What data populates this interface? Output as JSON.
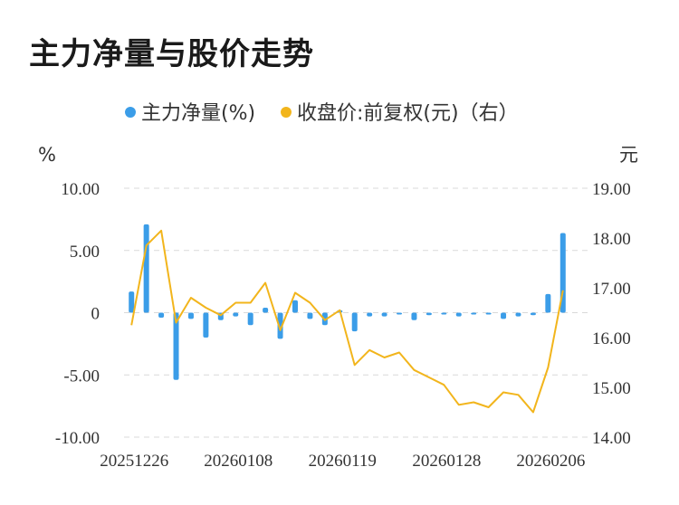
{
  "title": "主力净量与股价走势",
  "chart_data": {
    "type": "bar+line",
    "left_unit": "%",
    "right_unit": "元",
    "left_axis": {
      "min": -10,
      "max": 10,
      "ticks": [
        10,
        5,
        0,
        -5,
        -10
      ],
      "tick_labels": [
        "10.00",
        "5.00",
        "0",
        "-5.00",
        "-10.00"
      ]
    },
    "right_axis": {
      "min": 14,
      "max": 19,
      "ticks": [
        19,
        18,
        17,
        16,
        15,
        14
      ],
      "tick_labels": [
        "19.00",
        "18.00",
        "17.00",
        "16.00",
        "15.00",
        "14.00"
      ]
    },
    "x_tick_labels": [
      "20251226",
      "20260108",
      "20260119",
      "20260128",
      "20260206"
    ],
    "x_tick_indices": [
      0,
      7,
      14,
      21,
      28
    ],
    "legend": {
      "bar_label": "主力净量(%)",
      "line_label": "收盘价:前复权(元)（右）"
    },
    "colors": {
      "bar": "#3b9de8",
      "line": "#f2b51c",
      "grid": "#d9d9d9"
    },
    "bars": [
      1.7,
      7.1,
      -0.4,
      -5.4,
      -0.5,
      -2.0,
      -0.6,
      -0.3,
      -1.0,
      0.4,
      -2.1,
      1.0,
      -0.5,
      -1.0,
      0.2,
      -1.5,
      -0.3,
      -0.3,
      -0.1,
      -0.6,
      -0.2,
      -0.1,
      -0.3,
      -0.1,
      -0.1,
      -0.5,
      -0.3,
      -0.2,
      1.5,
      6.4
    ],
    "line": [
      16.25,
      17.85,
      18.15,
      16.3,
      16.8,
      16.6,
      16.45,
      16.7,
      16.7,
      17.1,
      16.15,
      16.9,
      16.7,
      16.35,
      16.55,
      15.45,
      15.75,
      15.6,
      15.7,
      15.35,
      15.2,
      15.05,
      14.65,
      14.7,
      14.6,
      14.9,
      14.85,
      14.5,
      15.4,
      16.95
    ]
  }
}
